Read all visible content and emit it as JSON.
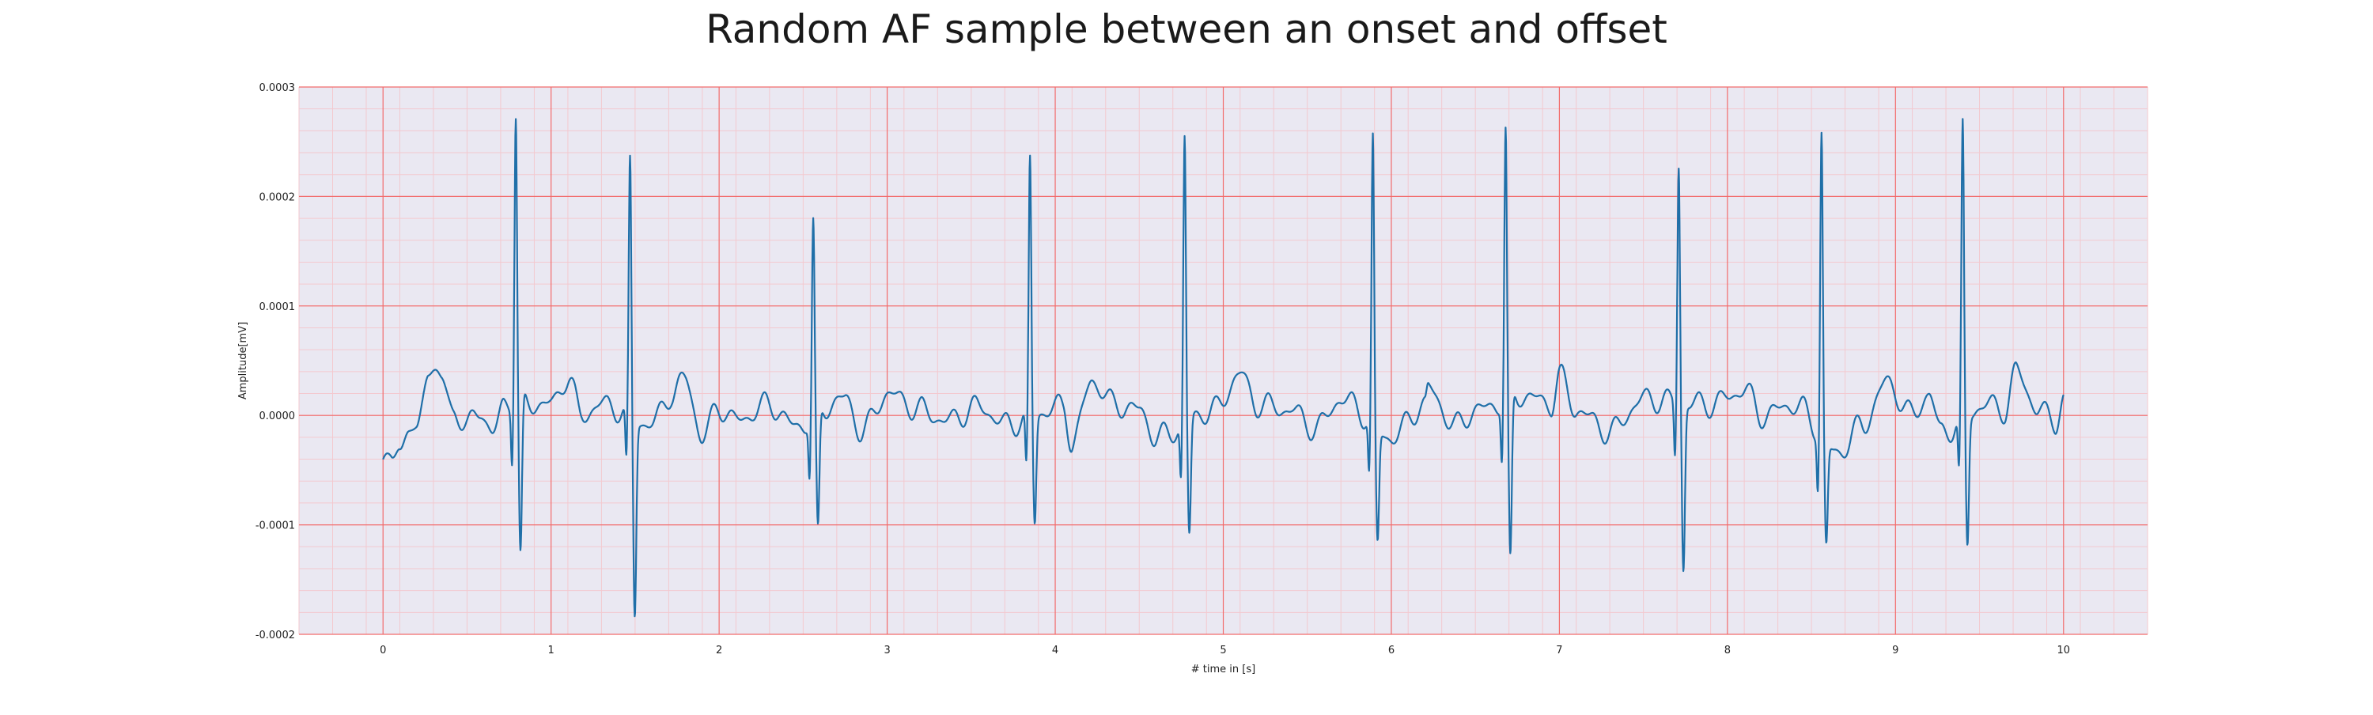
{
  "chart_data": {
    "type": "line",
    "title": "Random AF sample between an onset and offset",
    "xlabel": "# time in [s]",
    "ylabel": "Amplitude[mV]",
    "xlim": [
      -0.5,
      10.5
    ],
    "ylim": [
      -0.0002,
      0.0003
    ],
    "xticks": [
      0,
      1,
      2,
      3,
      4,
      5,
      6,
      7,
      8,
      9,
      10
    ],
    "yticks": [
      "-0.0002",
      "-0.0001",
      "0.0000",
      "0.0001",
      "0.0002",
      "0.0003"
    ],
    "grid": true,
    "minor_grid": true,
    "colors": {
      "background": "#eae8f2",
      "major_grid": "#f26b6b",
      "minor_grid": "#f3c9cf",
      "series": "#1f6fa8"
    },
    "series": [
      {
        "r_peaks_s": [
          0.79,
          1.47,
          2.56,
          3.85,
          4.77,
          5.89,
          6.68,
          7.71,
          8.56,
          9.4
        ],
        "r_peak_amplitudes": [
          0.000265,
          0.000231,
          0.000177,
          0.000234,
          0.000261,
          0.000259,
          0.000247,
          0.000218,
          0.000279,
          0.000265
        ],
        "s_trough_amplitudes": [
          -0.000145,
          -0.000179,
          -0.000112,
          -9.8e-05,
          -0.000105,
          -0.000105,
          -0.000154,
          -0.000152,
          -9.3e-05,
          -0.000119
        ],
        "start": {
          "t": 0.0,
          "amp": -4.5e-05
        },
        "end": {
          "t": 10.0,
          "amp": 1.4e-05
        },
        "baseline_points": [
          [
            0.0,
            -4.5e-05
          ],
          [
            0.05,
            -4e-05
          ],
          [
            0.1,
            -3e-05
          ],
          [
            0.15,
            -8e-06
          ],
          [
            0.2,
            -2.2e-05
          ],
          [
            0.27,
            4.8e-05
          ],
          [
            0.35,
            3e-05
          ],
          [
            0.42,
            5e-06
          ],
          [
            0.5,
            -1.2e-05
          ],
          [
            0.58,
            8e-06
          ],
          [
            0.65,
            -2e-05
          ],
          [
            0.72,
            1.2e-05
          ],
          [
            1.0,
            1e-05
          ],
          [
            1.1,
            3.5e-05
          ],
          [
            1.18,
            0.0
          ],
          [
            1.3,
            1e-05
          ],
          [
            1.6,
            -8e-06
          ],
          [
            1.72,
            2e-05
          ],
          [
            1.8,
            3.3e-05
          ],
          [
            1.9,
            -2e-05
          ],
          [
            2.0,
            8e-06
          ],
          [
            2.1,
            -5e-06
          ],
          [
            2.3,
            1e-05
          ],
          [
            2.45,
            -1e-05
          ],
          [
            2.75,
            1.5e-05
          ],
          [
            2.85,
            -1.5e-05
          ],
          [
            3.0,
            2e-05
          ],
          [
            3.2,
            5e-06
          ],
          [
            3.35,
            -5e-06
          ],
          [
            3.55,
            8e-06
          ],
          [
            3.7,
            -8e-06
          ],
          [
            4.05,
            8e-06
          ],
          [
            4.1,
            -2.5e-05
          ],
          [
            4.22,
            3.2e-05
          ],
          [
            4.35,
            1e-05
          ],
          [
            4.5,
            5e-06
          ],
          [
            4.6,
            -2e-05
          ],
          [
            4.95,
            5e-06
          ],
          [
            5.1,
            3.8e-05
          ],
          [
            5.2,
            1e-05
          ],
          [
            5.4,
            5e-06
          ],
          [
            5.55,
            -1.2e-05
          ],
          [
            5.7,
            1.5e-05
          ],
          [
            6.0,
            -2e-05
          ],
          [
            6.2,
            1e-05
          ],
          [
            6.22,
            2.4e-05
          ],
          [
            6.38,
            -1e-05
          ],
          [
            6.5,
            5e-06
          ],
          [
            6.8,
            1.8e-05
          ],
          [
            6.95,
            1e-05
          ],
          [
            7.0,
            3.6e-05
          ],
          [
            7.1,
            5e-06
          ],
          [
            7.3,
            -1.5e-05
          ],
          [
            7.5,
            1.5e-05
          ],
          [
            7.9,
            1e-05
          ],
          [
            8.0,
            1.6e-05
          ],
          [
            8.1,
            2.5e-05
          ],
          [
            8.2,
            0.0
          ],
          [
            8.4,
            1e-05
          ],
          [
            8.65,
            -3.5e-05
          ],
          [
            8.8,
            -1e-05
          ],
          [
            8.95,
            3e-05
          ],
          [
            9.1,
            0.0
          ],
          [
            9.2,
            2e-05
          ],
          [
            9.27,
            -1.5e-05
          ],
          [
            9.55,
            1e-05
          ],
          [
            9.65,
            5e-06
          ],
          [
            9.72,
            4e-05
          ],
          [
            9.85,
            5e-06
          ],
          [
            9.95,
            -5e-06
          ],
          [
            10.0,
            1.4e-05
          ]
        ]
      }
    ]
  }
}
